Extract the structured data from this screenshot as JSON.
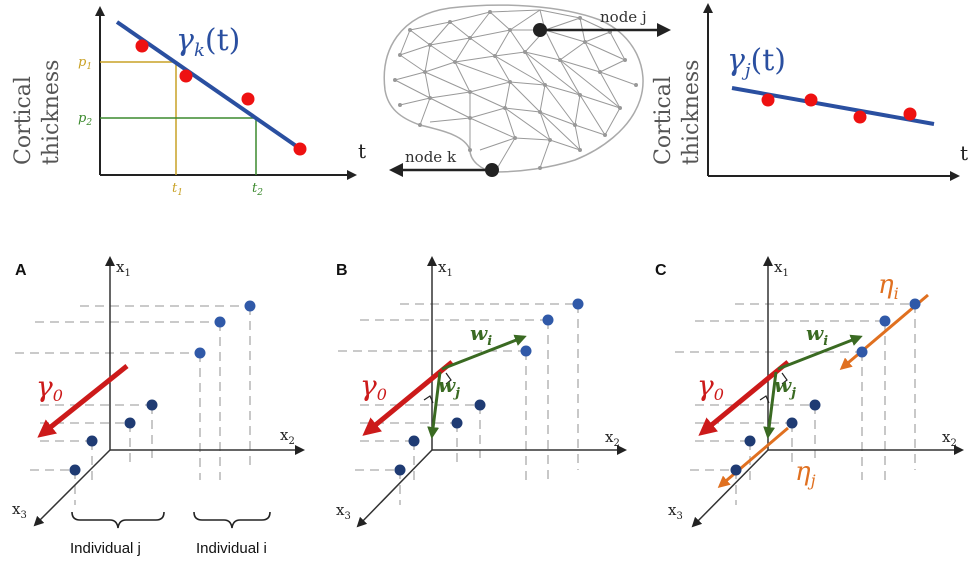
{
  "top": {
    "left_plot": {
      "ylabel_line1": "Cortical",
      "ylabel_line2": "thickness",
      "xlabel": "t",
      "curve_label": "γ",
      "curve_sub": "k",
      "curve_arg": "(t)",
      "p1": "p",
      "p1_sub": "1",
      "p2": "p",
      "p2_sub": "2",
      "t1": "t",
      "t1_sub": "1",
      "t2": "t",
      "t2_sub": "2"
    },
    "mesh": {
      "node_j": "node j",
      "node_k": "node k"
    },
    "right_plot": {
      "ylabel_line1": "Cortical",
      "ylabel_line2": "thickness",
      "xlabel": "t",
      "curve_label": "γ",
      "curve_sub": "j",
      "curve_arg": "(t)"
    },
    "colors": {
      "line": "#2a4fa0",
      "point": "#ee1111",
      "p1": "#c9a227",
      "p2": "#3c8a2e"
    }
  },
  "panels": [
    {
      "letter": "A",
      "x1": "x",
      "x1_sub": "1",
      "x2": "x",
      "x2_sub": "2",
      "x3": "x",
      "x3_sub": "3",
      "gamma": "γ",
      "gamma_sub": "0",
      "individual_j": "Individual j",
      "individual_i": "Individual i"
    },
    {
      "letter": "B",
      "x1": "x",
      "x1_sub": "1",
      "x2": "x",
      "x2_sub": "2",
      "x3": "x",
      "x3_sub": "3",
      "gamma": "γ",
      "gamma_sub": "0",
      "w_i": "w",
      "w_i_sub": "i",
      "w_j": "w",
      "w_j_sub": "j"
    },
    {
      "letter": "C",
      "x1": "x",
      "x1_sub": "1",
      "x2": "x",
      "x2_sub": "2",
      "x3": "x",
      "x3_sub": "3",
      "gamma": "γ",
      "gamma_sub": "0",
      "w_i": "w",
      "w_i_sub": "i",
      "w_j": "w",
      "w_j_sub": "j",
      "eta_i": "η",
      "eta_i_sub": "i",
      "eta_j": "η",
      "eta_j_sub": "j"
    }
  ],
  "bottom_colors": {
    "gamma": "#cc1a1a",
    "w": "#3a6a22",
    "eta": "#e07020",
    "dot": "#1f3b73"
  }
}
